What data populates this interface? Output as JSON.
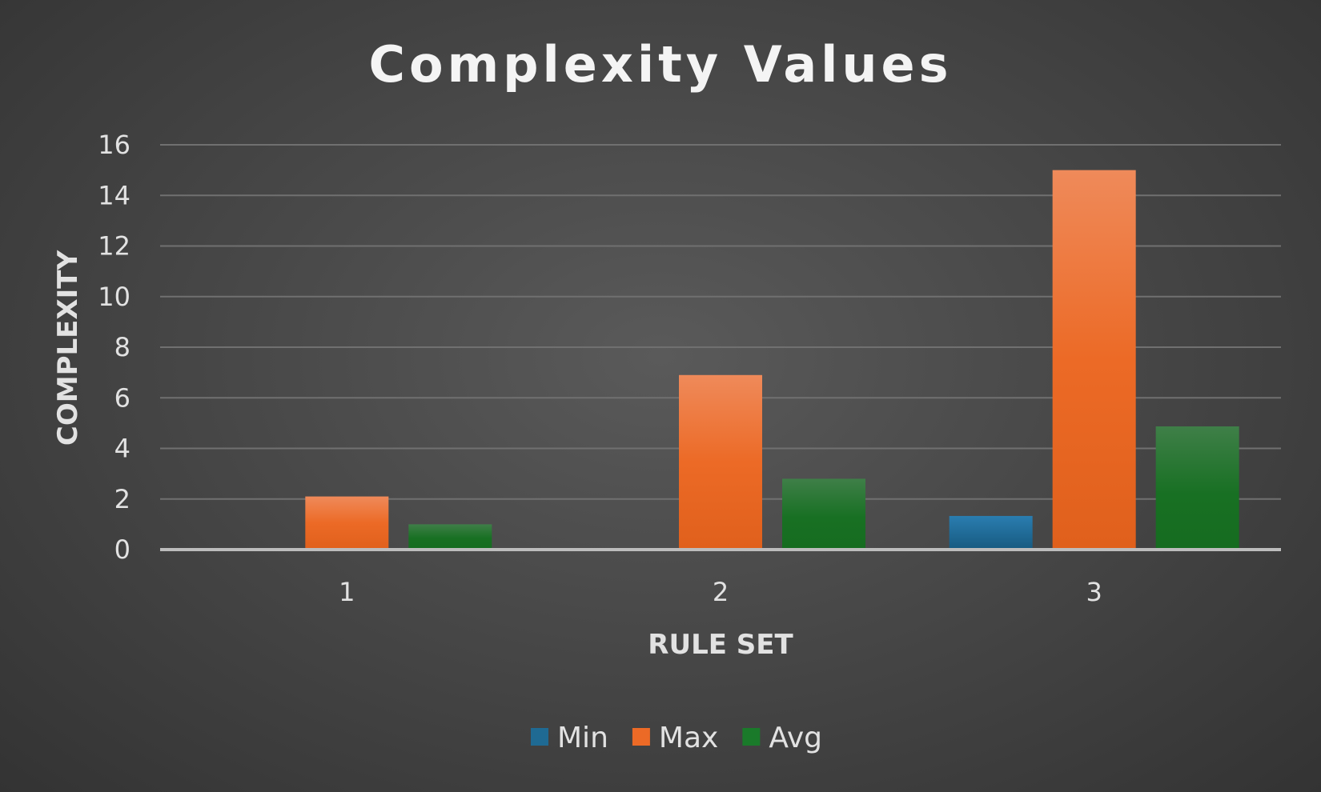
{
  "chart_data": {
    "type": "bar",
    "title": "Complexity Values",
    "xlabel": "RULE SET",
    "ylabel": "COMPLEXITY",
    "categories": [
      "1",
      "2",
      "3"
    ],
    "series": [
      {
        "name": "Min",
        "values": [
          0,
          0,
          1.33
        ]
      },
      {
        "name": "Max",
        "values": [
          2.1,
          6.9,
          15
        ]
      },
      {
        "name": "Avg",
        "values": [
          1,
          2.8,
          4.87
        ]
      }
    ],
    "ylim": [
      0,
      16
    ],
    "yticks": [
      "0",
      "2",
      "4",
      "6",
      "8",
      "10",
      "12",
      "14",
      "16"
    ],
    "grid": true,
    "legend": "bottom",
    "colors": {
      "Min": "#1f6a93",
      "Max": "#ec6a26",
      "Avg": "#1a7a2a",
      "background": "#4a4a4a"
    }
  }
}
